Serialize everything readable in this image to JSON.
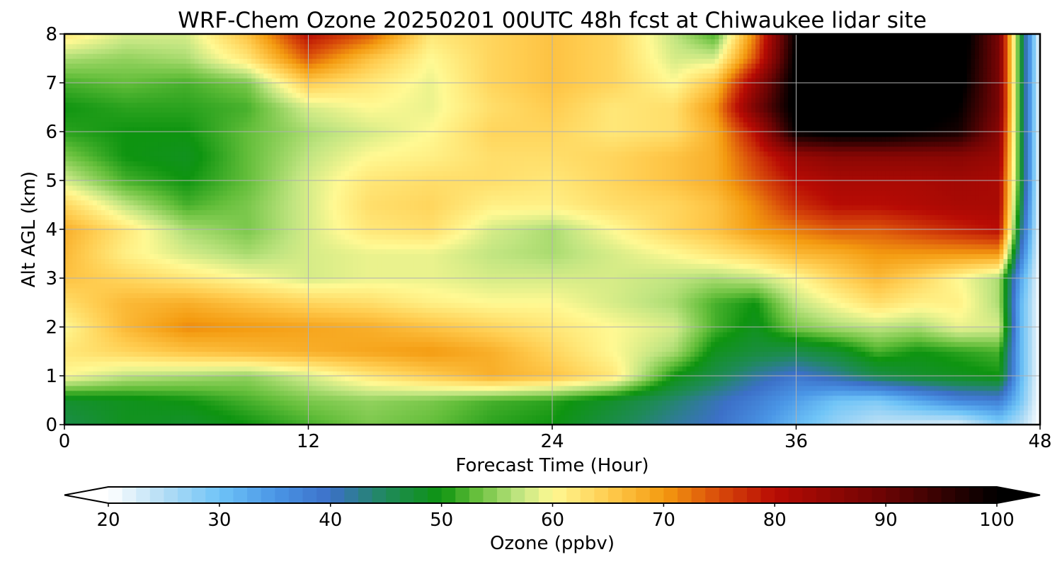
{
  "chart_data": {
    "type": "heatmap",
    "title": "WRF-Chem Ozone  20250201 00UTC 48h fcst at Chiwaukee lidar site",
    "xlabel": "Forecast Time (Hour)",
    "ylabel": "Alt AGL (km)",
    "xlim": [
      0,
      48
    ],
    "ylim": [
      0,
      8
    ],
    "x_ticks": [
      0,
      12,
      24,
      36,
      48
    ],
    "y_ticks": [
      0,
      1,
      2,
      3,
      4,
      5,
      6,
      7,
      8
    ],
    "grid": true,
    "x": [
      0,
      3,
      6,
      9,
      12,
      15,
      18,
      21,
      24,
      27,
      30,
      32,
      34,
      36,
      38,
      40,
      42,
      44,
      46,
      47,
      48
    ],
    "y": [
      0,
      0.5,
      1,
      1.5,
      2,
      2.5,
      3,
      3.5,
      4,
      4.5,
      5,
      5.5,
      6,
      6.5,
      7,
      7.5,
      8
    ],
    "z": [
      [
        46,
        49,
        48,
        50,
        52,
        54,
        53,
        51,
        50,
        46,
        42,
        40,
        36,
        31,
        27,
        24,
        23,
        22,
        28,
        25,
        20
      ],
      [
        48,
        49,
        50,
        52,
        54,
        55,
        54,
        52,
        51,
        48,
        44,
        41,
        38,
        34,
        30,
        29,
        33,
        37,
        38,
        30,
        20
      ],
      [
        60,
        57,
        56,
        55,
        58,
        62,
        65,
        68,
        66,
        62,
        50,
        46,
        42,
        39,
        42,
        46,
        48,
        49,
        50,
        32,
        20
      ],
      [
        62,
        64,
        66,
        67,
        68,
        69,
        70,
        68,
        64,
        60,
        56,
        49,
        47,
        46,
        48,
        52,
        50,
        51,
        52,
        32,
        20
      ],
      [
        60,
        67,
        71,
        70,
        69,
        68,
        66,
        64,
        62,
        60,
        58,
        52,
        49,
        54,
        56,
        57,
        56,
        59,
        58,
        32,
        20
      ],
      [
        63,
        67,
        68,
        66,
        64,
        63,
        61,
        60,
        60,
        58,
        56,
        52,
        50,
        57,
        60,
        63,
        61,
        61,
        56,
        32,
        20
      ],
      [
        66,
        64,
        62,
        60,
        58,
        59,
        59,
        58,
        58,
        58,
        57,
        56,
        57,
        60,
        64,
        67,
        64,
        60,
        56,
        34,
        20
      ],
      [
        67,
        61,
        58,
        56,
        58,
        59,
        59,
        57,
        56,
        58,
        60,
        62,
        64,
        67,
        68,
        70,
        70,
        70,
        70,
        40,
        20
      ],
      [
        68,
        62,
        56,
        54,
        58,
        62,
        63,
        58,
        56,
        60,
        64,
        66,
        70,
        72,
        74,
        74,
        76,
        78,
        80,
        45,
        20
      ],
      [
        64,
        57,
        52,
        54,
        58,
        63,
        64,
        61,
        61,
        63,
        64,
        66,
        71,
        77,
        80,
        80,
        81,
        82,
        82,
        48,
        20
      ],
      [
        58,
        52,
        50,
        53,
        58,
        62,
        63,
        63,
        62,
        64,
        66,
        68,
        74,
        80,
        82,
        82,
        82,
        83,
        82,
        50,
        20
      ],
      [
        54,
        50,
        49,
        53,
        57,
        60,
        61,
        63,
        63,
        64,
        66,
        68,
        76,
        84,
        86,
        86,
        86,
        86,
        84,
        50,
        20
      ],
      [
        51,
        50,
        50,
        53,
        56,
        58,
        60,
        64,
        64,
        62,
        63,
        68,
        80,
        100,
        102,
        102,
        100,
        98,
        86,
        50,
        20
      ],
      [
        50,
        51,
        51,
        52,
        58,
        60,
        59,
        63,
        65,
        62,
        63,
        70,
        88,
        102,
        103,
        103,
        102,
        100,
        88,
        50,
        20
      ],
      [
        52,
        53,
        52,
        54,
        65,
        62,
        59,
        64,
        66,
        64,
        60,
        66,
        84,
        102,
        104,
        104,
        104,
        102,
        88,
        50,
        20
      ],
      [
        56,
        55,
        56,
        62,
        74,
        66,
        60,
        64,
        66,
        64,
        58,
        58,
        75,
        101,
        105,
        105,
        105,
        103,
        88,
        50,
        20
      ],
      [
        62,
        58,
        58,
        66,
        80,
        74,
        62,
        64,
        66,
        64,
        57,
        52,
        72,
        100,
        106,
        106,
        106,
        104,
        88,
        50,
        20
      ]
    ],
    "colorbar": {
      "label": "Ozone  (ppbv)",
      "min": 20,
      "max": 100,
      "ticks": [
        "20",
        "30",
        "40",
        "50",
        "60",
        "70",
        "80",
        "90",
        "100"
      ],
      "extend": "both",
      "colors": [
        "#ffffff",
        "#b4ddf5",
        "#6fc4f7",
        "#4a96e6",
        "#3c70c8",
        "#1f8a5a",
        "#0e9410",
        "#63be3a",
        "#c1e581",
        "#fff993",
        "#ffcc4f",
        "#f49b10",
        "#d84a0a",
        "#b80b04",
        "#6a0404",
        "#000000"
      ],
      "color_stops": [
        20,
        25,
        30,
        35,
        40,
        45,
        50,
        53,
        57,
        60,
        65,
        70,
        75,
        80,
        90,
        100
      ]
    }
  }
}
